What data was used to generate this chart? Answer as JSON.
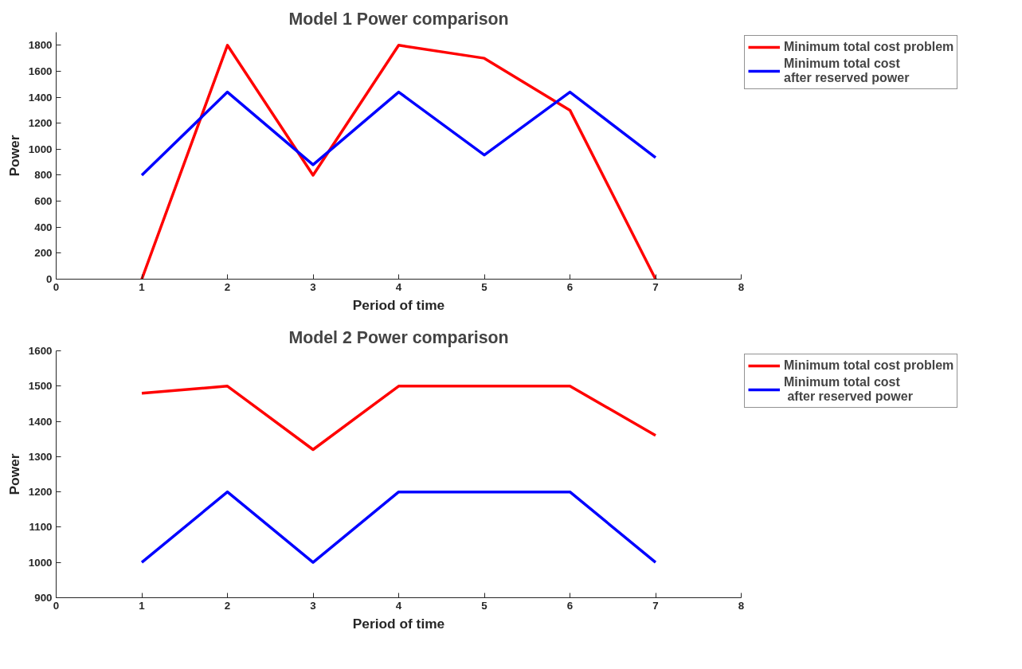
{
  "chart_data": [
    {
      "type": "line",
      "title": "Model 1 Power comparison",
      "xlabel": "Period of time",
      "ylabel": "Power",
      "x": [
        1,
        2,
        3,
        4,
        5,
        6,
        7
      ],
      "xlim": [
        0,
        8
      ],
      "xticks": [
        0,
        1,
        2,
        3,
        4,
        5,
        6,
        7,
        8
      ],
      "ylim": [
        0,
        1900
      ],
      "yticks": [
        0,
        200,
        400,
        600,
        800,
        1000,
        1200,
        1400,
        1600,
        1800
      ],
      "grid": false,
      "legend": "top right",
      "line_style": "solid",
      "series": [
        {
          "name": "Minimum total cost problem",
          "color": "#ff0000",
          "values": [
            0,
            1800,
            800,
            1800,
            1700,
            1300,
            0
          ]
        },
        {
          "name": "Minimum total cost\nafter reserved power",
          "color": "#0000ff",
          "values": [
            800,
            1440,
            880,
            1440,
            955,
            1440,
            935
          ]
        }
      ]
    },
    {
      "type": "line",
      "title": "Model 2 Power comparison",
      "xlabel": "Period of time",
      "ylabel": "Power",
      "x": [
        1,
        2,
        3,
        4,
        5,
        6,
        7
      ],
      "xlim": [
        0,
        8
      ],
      "xticks": [
        0,
        1,
        2,
        3,
        4,
        5,
        6,
        7,
        8
      ],
      "ylim": [
        900,
        1600
      ],
      "yticks": [
        900,
        1000,
        1100,
        1200,
        1300,
        1400,
        1500,
        1600
      ],
      "grid": false,
      "legend": "top right",
      "line_style": "solid",
      "series": [
        {
          "name": "Minimum total cost problem",
          "color": "#ff0000",
          "values": [
            1480,
            1500,
            1320,
            1500,
            1500,
            1500,
            1360
          ]
        },
        {
          "name": "Minimum total cost\n after reserved power",
          "color": "#0000ff",
          "values": [
            1000,
            1200,
            1000,
            1200,
            1200,
            1200,
            1000
          ]
        }
      ]
    }
  ]
}
